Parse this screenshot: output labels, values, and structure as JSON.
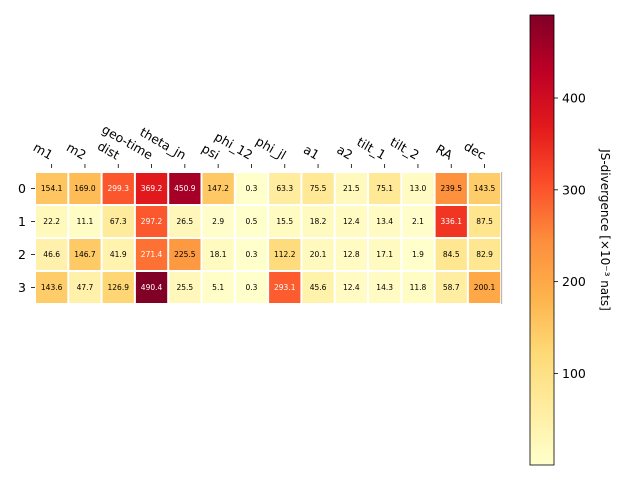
{
  "chart_data": {
    "type": "heatmap",
    "columns": [
      "m1",
      "m2",
      "dist",
      "geo-time",
      "theta_jn",
      "psi",
      "phi_12",
      "phi_jl",
      "a1",
      "a2",
      "tilt_1",
      "tilt_2",
      "RA",
      "dec"
    ],
    "rows": [
      "0",
      "1",
      "2",
      "3"
    ],
    "values": [
      [
        154.1,
        169.0,
        299.3,
        369.2,
        450.9,
        147.2,
        0.3,
        63.3,
        75.5,
        21.5,
        75.1,
        13.0,
        239.5,
        143.5
      ],
      [
        22.2,
        11.1,
        67.3,
        297.2,
        26.5,
        2.9,
        0.5,
        15.5,
        18.2,
        12.4,
        13.4,
        2.1,
        336.1,
        87.5
      ],
      [
        46.6,
        146.7,
        41.9,
        271.4,
        225.5,
        18.1,
        0.3,
        112.2,
        20.1,
        12.8,
        17.1,
        1.9,
        84.5,
        82.9
      ],
      [
        143.6,
        47.7,
        126.9,
        490.4,
        25.5,
        5.1,
        0.3,
        293.1,
        45.6,
        12.4,
        14.3,
        11.8,
        58.7,
        200.1
      ]
    ],
    "colorbar": {
      "label": "JS-divergence [×10⁻³ nats]",
      "ticks": [
        100,
        200,
        300,
        400
      ],
      "range": [
        0.3,
        490.4
      ],
      "colormap": "YlOrRd"
    }
  }
}
